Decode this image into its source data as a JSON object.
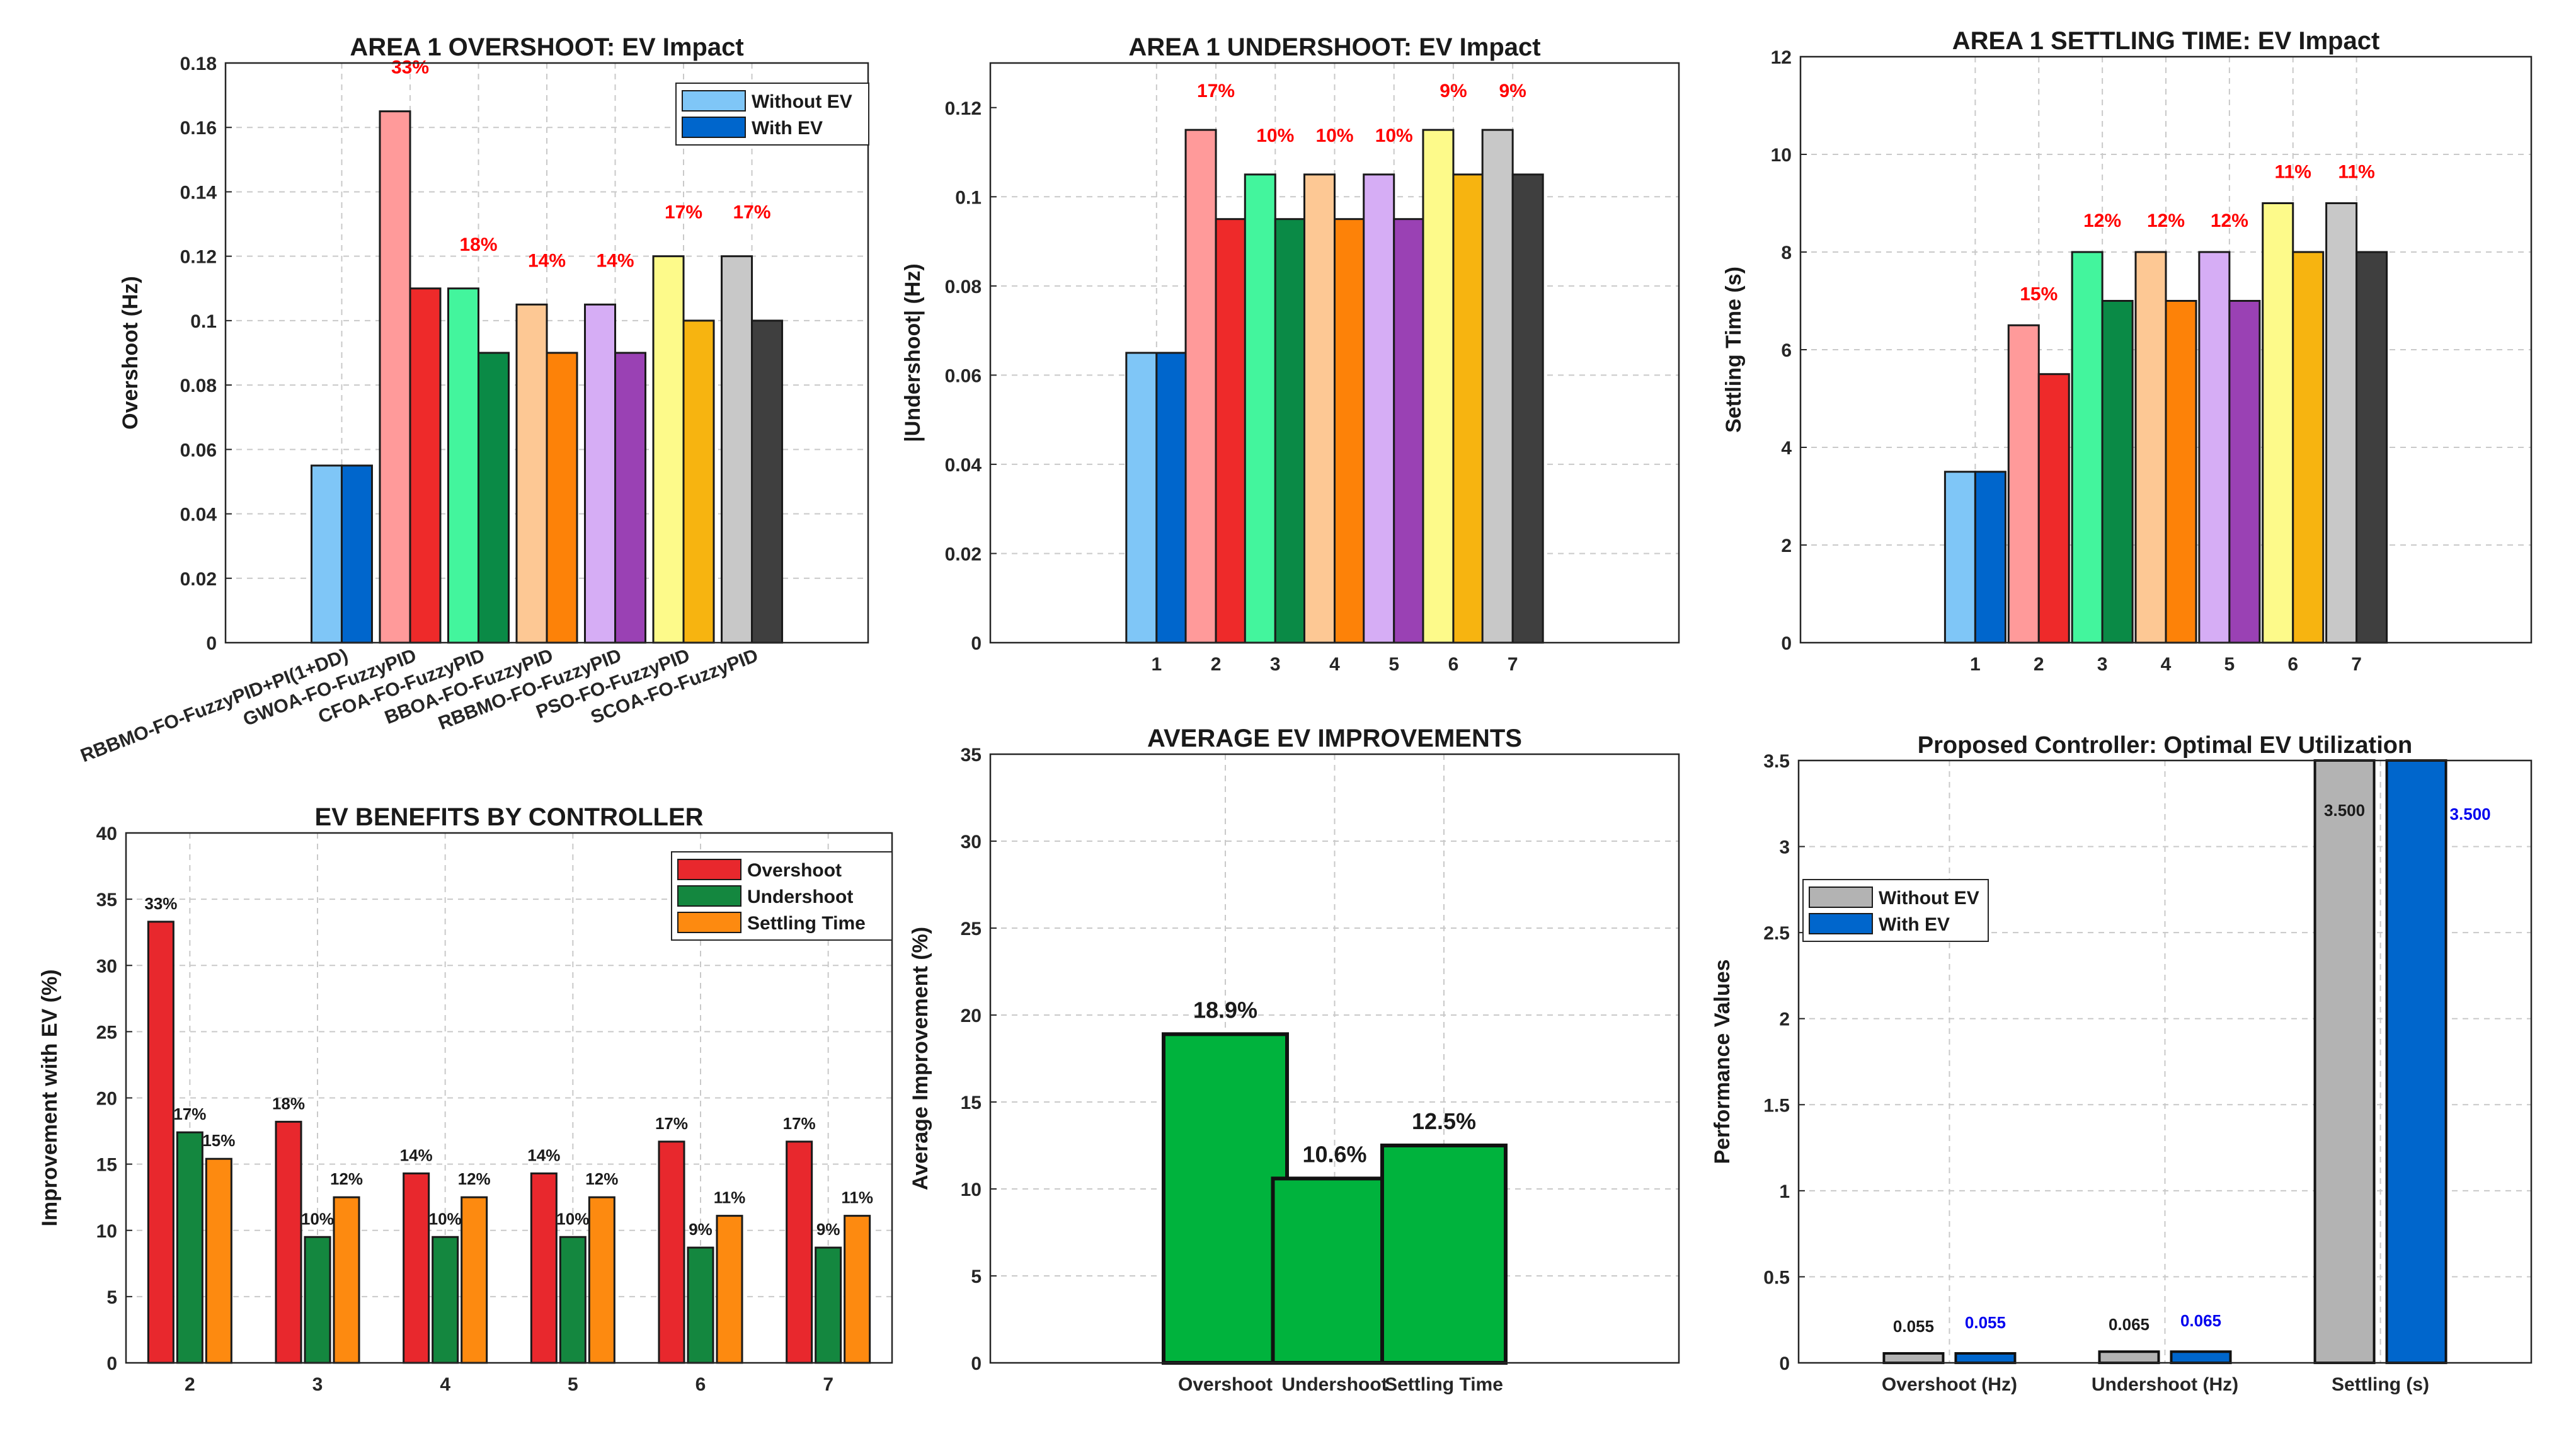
{
  "colors": {
    "without": [
      "#7fc6f7",
      "#ff9a9a",
      "#43f59d",
      "#fdc894",
      "#d6adf5",
      "#fdfa8a",
      "#c8c8c8"
    ],
    "with": [
      "#0066cc",
      "#ee2a2a",
      "#0a8a46",
      "#fd8208",
      "#9a41b4",
      "#f7b410",
      "#3f3f3f"
    ],
    "red_label": "#ff0000",
    "blue_label": "#0000ee",
    "improve": {
      "Overshoot": "#e8282d",
      "Undershoot": "#14873f",
      "Settling Time": "#fd8a10"
    },
    "average_bar": "#00b33d",
    "proposed_without": "#b3b3b3",
    "proposed_with": "#0066cc"
  },
  "chart_data": [
    {
      "type": "bar",
      "title": "AREA 1 OVERSHOOT: EV Impact",
      "ylabel": "Overshoot (Hz)",
      "xlabel": "",
      "ylim": [
        0,
        0.18
      ],
      "yticks": [
        0,
        0.02,
        0.04,
        0.06,
        0.08,
        0.1,
        0.12,
        0.14,
        0.16,
        0.18
      ],
      "ytick_labels": [
        "0",
        "0.02",
        "0.04",
        "0.06",
        "0.08",
        "0.1",
        "0.12",
        "0.14",
        "0.16",
        "0.18"
      ],
      "categories": [
        "RBBMO-FO-FuzzyPID+PI(1+DD)",
        "GWOA-FO-FuzzyPID",
        "CFOA-FO-FuzzyPID",
        "BBOA-FO-FuzzyPID",
        "RBBMO-FO-FuzzyPID",
        "PSO-FO-FuzzyPID",
        "SCOA-FO-FuzzyPID"
      ],
      "series": [
        {
          "name": "Without EV",
          "values": [
            0.055,
            0.165,
            0.11,
            0.105,
            0.105,
            0.12,
            0.12
          ]
        },
        {
          "name": "With EV",
          "values": [
            0.055,
            0.11,
            0.09,
            0.09,
            0.09,
            0.1,
            0.1
          ]
        }
      ],
      "annotations": [
        "",
        "33%",
        "18%",
        "14%",
        "14%",
        "17%",
        "17%"
      ],
      "legend": [
        "Without EV",
        "With EV"
      ],
      "legend_position": "top-right",
      "grid": true
    },
    {
      "type": "bar",
      "title": "AREA 1 UNDERSHOOT: EV Impact",
      "ylabel": "|Undershoot| (Hz)",
      "xlabel": "",
      "ylim": [
        0,
        0.13
      ],
      "yticks": [
        0,
        0.02,
        0.04,
        0.06,
        0.08,
        0.1,
        0.12
      ],
      "ytick_labels": [
        "0",
        "0.02",
        "0.04",
        "0.06",
        "0.08",
        "0.1",
        "0.12"
      ],
      "categories": [
        "1",
        "2",
        "3",
        "4",
        "5",
        "6",
        "7"
      ],
      "series": [
        {
          "name": "Without EV",
          "values": [
            0.065,
            0.115,
            0.105,
            0.105,
            0.105,
            0.115,
            0.115
          ]
        },
        {
          "name": "With EV",
          "values": [
            0.065,
            0.095,
            0.095,
            0.095,
            0.095,
            0.105,
            0.105
          ]
        }
      ],
      "annotations": [
        "",
        "17%",
        "10%",
        "10%",
        "10%",
        "9%",
        "9%"
      ],
      "grid": true
    },
    {
      "type": "bar",
      "title": "AREA 1 SETTLING TIME: EV Impact",
      "ylabel": "Settling Time (s)",
      "xlabel": "",
      "ylim": [
        0,
        12
      ],
      "yticks": [
        0,
        2,
        4,
        6,
        8,
        10,
        12
      ],
      "ytick_labels": [
        "0",
        "2",
        "4",
        "6",
        "8",
        "10",
        "12"
      ],
      "categories": [
        "1",
        "2",
        "3",
        "4",
        "5",
        "6",
        "7"
      ],
      "series": [
        {
          "name": "Without EV",
          "values": [
            3.5,
            6.5,
            8,
            8,
            8,
            9,
            9
          ]
        },
        {
          "name": "With EV",
          "values": [
            3.5,
            5.5,
            7,
            7,
            7,
            8,
            8
          ]
        }
      ],
      "annotations": [
        "",
        "15%",
        "12%",
        "12%",
        "12%",
        "11%",
        "11%"
      ],
      "grid": true
    },
    {
      "type": "bar",
      "title": "EV BENEFITS BY CONTROLLER",
      "ylabel": "Improvement with EV (%)",
      "xlabel": "",
      "ylim": [
        0,
        40
      ],
      "yticks": [
        0,
        5,
        10,
        15,
        20,
        25,
        30,
        35,
        40
      ],
      "ytick_labels": [
        "0",
        "5",
        "10",
        "15",
        "20",
        "25",
        "30",
        "35",
        "40"
      ],
      "categories": [
        "2",
        "3",
        "4",
        "5",
        "6",
        "7"
      ],
      "series": [
        {
          "name": "Overshoot",
          "values": [
            33.3,
            18.2,
            14.3,
            14.3,
            16.7,
            16.7
          ],
          "labels": [
            "33%",
            "18%",
            "14%",
            "14%",
            "17%",
            "17%"
          ]
        },
        {
          "name": "Undershoot",
          "values": [
            17.4,
            9.5,
            9.5,
            9.5,
            8.7,
            8.7
          ],
          "labels": [
            "17%",
            "10%",
            "10%",
            "10%",
            "9%",
            "9%"
          ]
        },
        {
          "name": "Settling Time",
          "values": [
            15.4,
            12.5,
            12.5,
            12.5,
            11.1,
            11.1
          ],
          "labels": [
            "15%",
            "12%",
            "12%",
            "12%",
            "11%",
            "11%"
          ]
        }
      ],
      "legend": [
        "Overshoot",
        "Undershoot",
        "Settling Time"
      ],
      "legend_position": "top-right",
      "grid": true
    },
    {
      "type": "bar",
      "title": "AVERAGE EV IMPROVEMENTS",
      "ylabel": "Average Improvement (%)",
      "xlabel": "",
      "ylim": [
        0,
        35
      ],
      "yticks": [
        0,
        5,
        10,
        15,
        20,
        25,
        30,
        35
      ],
      "ytick_labels": [
        "0",
        "5",
        "10",
        "15",
        "20",
        "25",
        "30",
        "35"
      ],
      "categories": [
        "Overshoot",
        "Undershoot",
        "Settling Time"
      ],
      "values": [
        18.9,
        10.6,
        12.5
      ],
      "labels": [
        "18.9%",
        "10.6%",
        "12.5%"
      ],
      "grid": true
    },
    {
      "type": "bar",
      "title": "Proposed Controller: Optimal EV Utilization",
      "ylabel": "Performance Values",
      "xlabel": "",
      "ylim": [
        0,
        3.5
      ],
      "yticks": [
        0,
        0.5,
        1,
        1.5,
        2,
        2.5,
        3,
        3.5
      ],
      "ytick_labels": [
        "0",
        "0.5",
        "1",
        "1.5",
        "2",
        "2.5",
        "3",
        "3.5"
      ],
      "categories": [
        "Overshoot (Hz)",
        "Undershoot (Hz)",
        "Settling (s)"
      ],
      "series": [
        {
          "name": "Without EV",
          "values": [
            0.055,
            0.065,
            3.5
          ],
          "labels": [
            "0.055",
            "0.065",
            "3.500"
          ]
        },
        {
          "name": "With EV",
          "values": [
            0.055,
            0.065,
            3.5
          ],
          "labels": [
            "0.055",
            "0.065",
            "3.500"
          ]
        }
      ],
      "legend": [
        "Without EV",
        "With EV"
      ],
      "legend_position": "middle-left",
      "grid": true
    }
  ]
}
